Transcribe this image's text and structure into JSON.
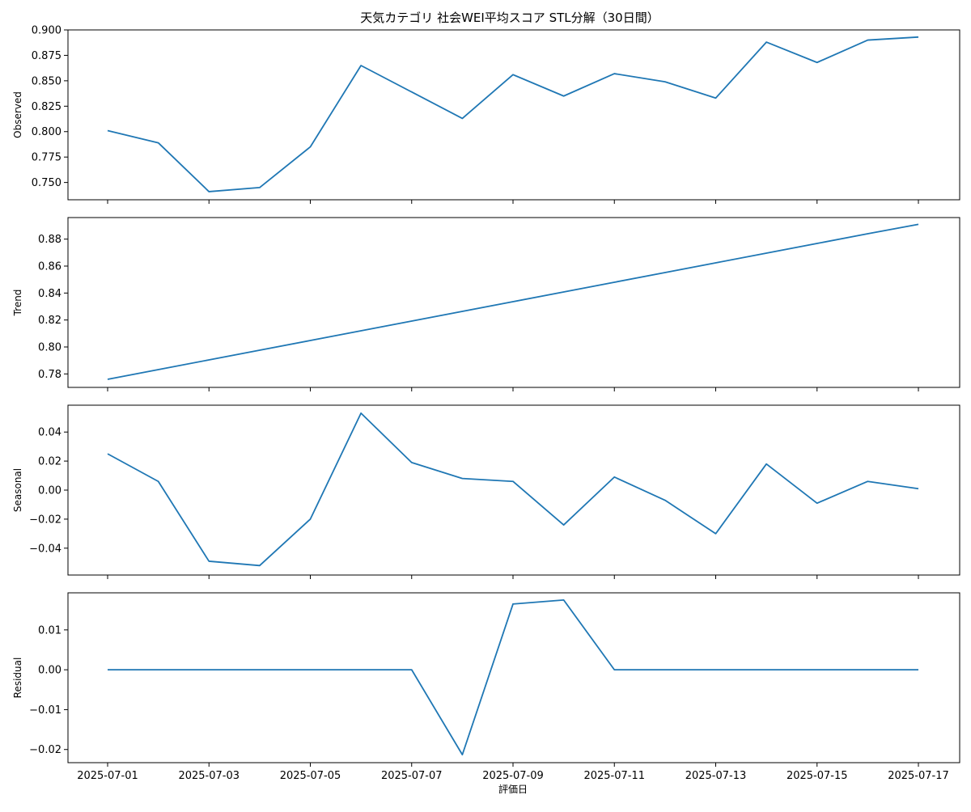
{
  "chart_data": {
    "type": "line",
    "title": "天気カテゴリ 社会WEI平均スコア STL分解（30日間）",
    "xlabel": "評価日",
    "x": [
      "2025-07-01",
      "2025-07-02",
      "2025-07-03",
      "2025-07-04",
      "2025-07-05",
      "2025-07-06",
      "2025-07-07",
      "2025-07-08",
      "2025-07-09",
      "2025-07-10",
      "2025-07-11",
      "2025-07-12",
      "2025-07-13",
      "2025-07-14",
      "2025-07-15",
      "2025-07-16",
      "2025-07-17"
    ],
    "x_tick_labels": [
      "2025-07-01",
      "2025-07-03",
      "2025-07-05",
      "2025-07-07",
      "2025-07-09",
      "2025-07-11",
      "2025-07-13",
      "2025-07-15",
      "2025-07-17"
    ],
    "line_color": "#1f77b4",
    "grid": false,
    "panels": [
      {
        "ylabel": "Observed",
        "ylim": [
          0.733,
          0.9
        ],
        "yticks": [
          0.75,
          0.775,
          0.8,
          0.825,
          0.85,
          0.875,
          0.9
        ],
        "ytick_labels": [
          "0.750",
          "0.775",
          "0.800",
          "0.825",
          "0.850",
          "0.875",
          "0.900"
        ],
        "values": [
          0.801,
          0.789,
          0.741,
          0.745,
          0.785,
          0.865,
          0.839,
          0.813,
          0.856,
          0.835,
          0.857,
          0.849,
          0.833,
          0.888,
          0.868,
          0.89,
          0.893
        ]
      },
      {
        "ylabel": "Trend",
        "ylim": [
          0.77,
          0.896
        ],
        "yticks": [
          0.78,
          0.8,
          0.82,
          0.84,
          0.86,
          0.88
        ],
        "ytick_labels": [
          "0.78",
          "0.80",
          "0.82",
          "0.84",
          "0.86",
          "0.88"
        ],
        "values": [
          0.776,
          0.7832,
          0.7904,
          0.7976,
          0.8048,
          0.812,
          0.8192,
          0.8264,
          0.8336,
          0.8408,
          0.848,
          0.8552,
          0.8624,
          0.8696,
          0.8768,
          0.884,
          0.891
        ]
      },
      {
        "ylabel": "Seasonal",
        "ylim": [
          -0.0585,
          0.0585
        ],
        "yticks": [
          -0.04,
          -0.02,
          0.0,
          0.02,
          0.04
        ],
        "ytick_labels": [
          "−0.04",
          "−0.02",
          "0.00",
          "0.02",
          "0.04"
        ],
        "values": [
          0.025,
          0.006,
          -0.049,
          -0.052,
          -0.02,
          0.053,
          0.019,
          0.008,
          0.006,
          -0.024,
          0.009,
          -0.007,
          -0.03,
          0.018,
          -0.009,
          0.006,
          0.001
        ]
      },
      {
        "ylabel": "Residual",
        "ylim": [
          -0.0233,
          0.0193
        ],
        "yticks": [
          -0.02,
          -0.01,
          0.0,
          0.01
        ],
        "ytick_labels": [
          "−0.02",
          "−0.01",
          "0.00",
          "0.01"
        ],
        "values": [
          0,
          0,
          0,
          0,
          0,
          0,
          0,
          -0.0213,
          0.0165,
          0.0175,
          0,
          0,
          0,
          0,
          0,
          0,
          0
        ]
      }
    ]
  }
}
